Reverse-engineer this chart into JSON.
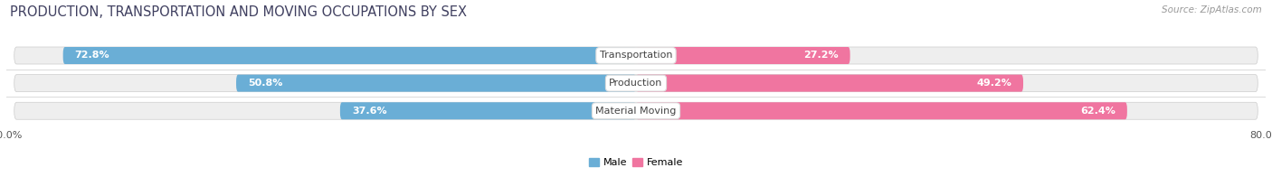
{
  "title": "PRODUCTION, TRANSPORTATION AND MOVING OCCUPATIONS BY SEX",
  "source": "Source: ZipAtlas.com",
  "categories": [
    "Transportation",
    "Production",
    "Material Moving"
  ],
  "male_pct": [
    72.8,
    50.8,
    37.6
  ],
  "female_pct": [
    27.2,
    49.2,
    62.4
  ],
  "male_color": "#6aaed6",
  "female_color": "#f075a0",
  "male_color_light": "#c6d9f0",
  "female_color_light": "#f9c6d4",
  "male_label": "Male",
  "female_label": "Female",
  "axis_max": 80.0,
  "background_color": "#ffffff",
  "row_bg_color": "#eeeeee",
  "title_color": "#404060",
  "title_fontsize": 10.5,
  "source_fontsize": 7.5,
  "label_fontsize": 8,
  "pct_fontsize": 8,
  "legend_fontsize": 8
}
